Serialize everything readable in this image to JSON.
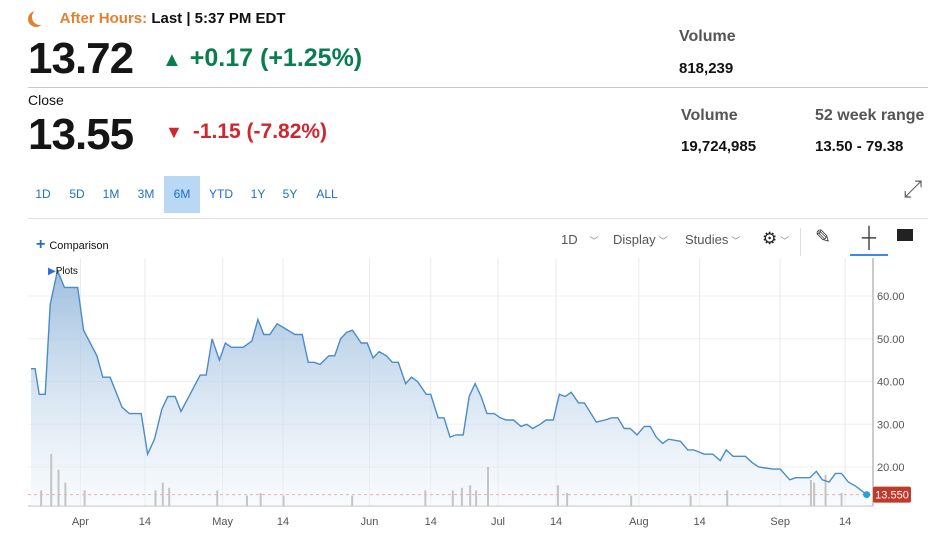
{
  "header": {
    "after_hours_label": "After Hours:",
    "after_hours_status": "Last | 5:37 PM EDT",
    "last_price": "13.72",
    "last_change": "+0.17 (+1.25%)",
    "close_label": "Close",
    "close_price": "13.55",
    "close_change": "-1.15 (-7.82%)",
    "ah_volume_label": "Volume",
    "ah_volume": "818,239",
    "volume_label": "Volume",
    "volume": "19,724,985",
    "range_label": "52 week range",
    "range": "13.50 - 79.38"
  },
  "colors": {
    "up": "#0a7d4f",
    "down": "#d0262d",
    "accent": "#1f6fc4",
    "line": "#4a8cc9",
    "price_tag": "#c0392b"
  },
  "periods": [
    {
      "label": "1D"
    },
    {
      "label": "5D"
    },
    {
      "label": "1M"
    },
    {
      "label": "3M"
    },
    {
      "label": "6M",
      "selected": true
    },
    {
      "label": "YTD"
    },
    {
      "label": "1Y"
    },
    {
      "label": "5Y"
    },
    {
      "label": "ALL"
    }
  ],
  "toolbar": {
    "comparison": "Comparison",
    "interval": "1D",
    "display": "Display",
    "studies": "Studies",
    "plots": "Plots"
  },
  "chart_data": {
    "type": "area",
    "xlabel": "",
    "ylabel": "",
    "xlim": [
      0,
      183
    ],
    "ylim": [
      11.5,
      68
    ],
    "x": [
      0,
      0.9,
      1.8,
      3.1,
      4.2,
      5.8,
      7.3,
      10.2,
      11.5,
      14.4,
      15.7,
      17.3,
      19.9,
      21.5,
      24.1,
      25.5,
      27.0,
      28.6,
      29.9,
      31.5,
      32.8,
      37.0,
      38.3,
      39.6,
      41.2,
      42.5,
      43.8,
      46.4,
      48.3,
      49.6,
      50.9,
      52.2,
      53.8,
      55.4,
      57.7,
      59.3,
      60.6,
      61.9,
      63.2,
      65.1,
      66.4,
      67.7,
      69.0,
      70.3,
      72.2,
      73.5,
      74.8,
      76.1,
      77.7,
      79.0,
      80.3,
      81.9,
      83.2,
      84.5,
      86.4,
      87.4,
      89.0,
      90.3,
      91.6,
      92.9,
      94.5,
      95.8,
      97.1,
      98.4,
      99.7,
      101.3,
      102.6,
      103.9,
      105.5,
      107.1,
      108.4,
      109.7,
      111.3,
      112.6,
      114.2,
      115.5,
      116.8,
      118.1,
      119.7,
      121.0,
      123.6,
      125.5,
      127.0,
      128.3,
      129.7,
      131.0,
      132.5,
      134.1,
      135.4,
      136.7,
      138.1,
      139.4,
      142.0,
      143.6,
      144.9,
      147.2,
      149.1,
      150.7,
      152.0,
      153.5,
      156.2,
      157.7,
      159.1,
      162.2,
      163.8,
      165.9,
      167.2,
      168.2,
      170.3,
      171.7,
      173.0,
      174.5,
      175.9,
      177.2,
      178.7,
      180.3,
      182.7
    ],
    "y": [
      43,
      43,
      37,
      37,
      58,
      66,
      62,
      62,
      52,
      46,
      41,
      41,
      34,
      32.5,
      32.5,
      23,
      26.5,
      33.5,
      36.5,
      36.5,
      33,
      41.5,
      41.5,
      50,
      45,
      49,
      48,
      48,
      49.5,
      54.5,
      51,
      51,
      53.5,
      52.5,
      51,
      51,
      44.5,
      44.5,
      44,
      46,
      46,
      50,
      51.5,
      52,
      49,
      49,
      45.5,
      47,
      46,
      44.5,
      44.5,
      39.5,
      41,
      40,
      37,
      37,
      31.5,
      31.5,
      27,
      27.5,
      27.5,
      36.5,
      39.5,
      36.5,
      32.5,
      32.5,
      31.5,
      31,
      31,
      29.5,
      30,
      29,
      30,
      31,
      31,
      37,
      36.5,
      37.5,
      35,
      35,
      30.5,
      31,
      31.5,
      31.5,
      29,
      29,
      27.5,
      29.5,
      29.5,
      27,
      25.5,
      26.5,
      26,
      24,
      24,
      23,
      23,
      21.5,
      24,
      22.5,
      22.5,
      21,
      20,
      19.5,
      19.5,
      17,
      17.5,
      17.5,
      17.5,
      19,
      17,
      16.5,
      18.5,
      18.5,
      16.5,
      15.5,
      13.55
    ],
    "yticks": [
      "20.00",
      "30.00",
      "40.00",
      "50.00",
      "60.00"
    ],
    "ytick_values": [
      20,
      30,
      40,
      50,
      60
    ],
    "xticks": [
      {
        "label": "Apr",
        "x": 10.8
      },
      {
        "label": "14",
        "x": 24.9
      },
      {
        "label": "May",
        "x": 41.9
      },
      {
        "label": "14",
        "x": 55.1
      },
      {
        "label": "Jun",
        "x": 74.0
      },
      {
        "label": "14",
        "x": 87.4
      },
      {
        "label": "Jul",
        "x": 102.1
      },
      {
        "label": "14",
        "x": 114.8
      },
      {
        "label": "Aug",
        "x": 132.9
      },
      {
        "label": "14",
        "x": 146.2
      },
      {
        "label": "Sep",
        "x": 163.8
      },
      {
        "label": "14",
        "x": 178.0
      }
    ],
    "last_price_label": "13.550",
    "volume": {
      "x": [
        2,
        4.2,
        5.8,
        7.3,
        11.5,
        27,
        28.6,
        30,
        40.5,
        47,
        50,
        55,
        70,
        86,
        92,
        94,
        95.8,
        97.1,
        99.7,
        115,
        117,
        131,
        144,
        152,
        170.3,
        171,
        173.5,
        177
      ],
      "rel": [
        0.3,
        1,
        0.7,
        0.45,
        0.3,
        0.3,
        0.45,
        0.35,
        0.3,
        0.2,
        0.25,
        0.2,
        0.2,
        0.3,
        0.3,
        0.35,
        0.4,
        0.3,
        0.75,
        0.4,
        0.25,
        0.2,
        0.2,
        0.3,
        0.5,
        0.45,
        0.6,
        0.25
      ]
    }
  }
}
